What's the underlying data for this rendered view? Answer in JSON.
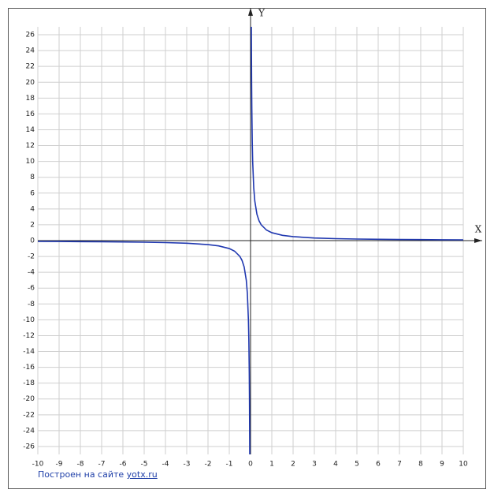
{
  "chart_data": {
    "type": "line",
    "x_label": "X",
    "y_label": "Y",
    "xlim": [
      -10,
      10
    ],
    "ylim": [
      -27,
      27
    ],
    "xticks": [
      -10,
      -9,
      -8,
      -7,
      -6,
      -5,
      -4,
      -3,
      -2,
      -1,
      0,
      1,
      2,
      3,
      4,
      5,
      6,
      7,
      8,
      9,
      10
    ],
    "yticks": [
      -26,
      -24,
      -22,
      -20,
      -18,
      -16,
      -14,
      -12,
      -10,
      -8,
      -6,
      -4,
      -2,
      0,
      2,
      4,
      6,
      8,
      10,
      12,
      14,
      16,
      18,
      20,
      22,
      24,
      26
    ],
    "grid": true,
    "series": [
      {
        "color": "#2038b0",
        "x": [
          -10,
          -9,
          -8,
          -7,
          -6,
          -5,
          -4,
          -3,
          -2,
          -1.5,
          -1,
          -0.75,
          -0.5,
          -0.4,
          -0.3,
          -0.2,
          -0.15,
          -0.1,
          -0.08,
          -0.06,
          -0.05,
          -0.04,
          -0.037,
          0,
          0.037,
          0.04,
          0.05,
          0.06,
          0.08,
          0.1,
          0.15,
          0.2,
          0.3,
          0.4,
          0.5,
          0.75,
          1,
          1.5,
          2,
          3,
          4,
          5,
          6,
          7,
          8,
          9,
          10
        ],
        "values": [
          -0.1,
          -0.11,
          -0.13,
          -0.14,
          -0.17,
          -0.2,
          -0.25,
          -0.33,
          -0.5,
          -0.67,
          -1,
          -1.33,
          -2,
          -2.5,
          -3.33,
          -5,
          -6.67,
          -10,
          -12.5,
          -16.67,
          -20,
          -25,
          -27,
          null,
          27,
          25,
          20,
          16.67,
          12.5,
          10,
          6.67,
          5,
          3.33,
          2.5,
          2,
          1.33,
          1,
          0.67,
          0.5,
          0.33,
          0.25,
          0.2,
          0.17,
          0.14,
          0.13,
          0.11,
          0.1
        ]
      }
    ]
  },
  "footer": {
    "text": "Построен на сайте",
    "link": "yotx.ru"
  }
}
